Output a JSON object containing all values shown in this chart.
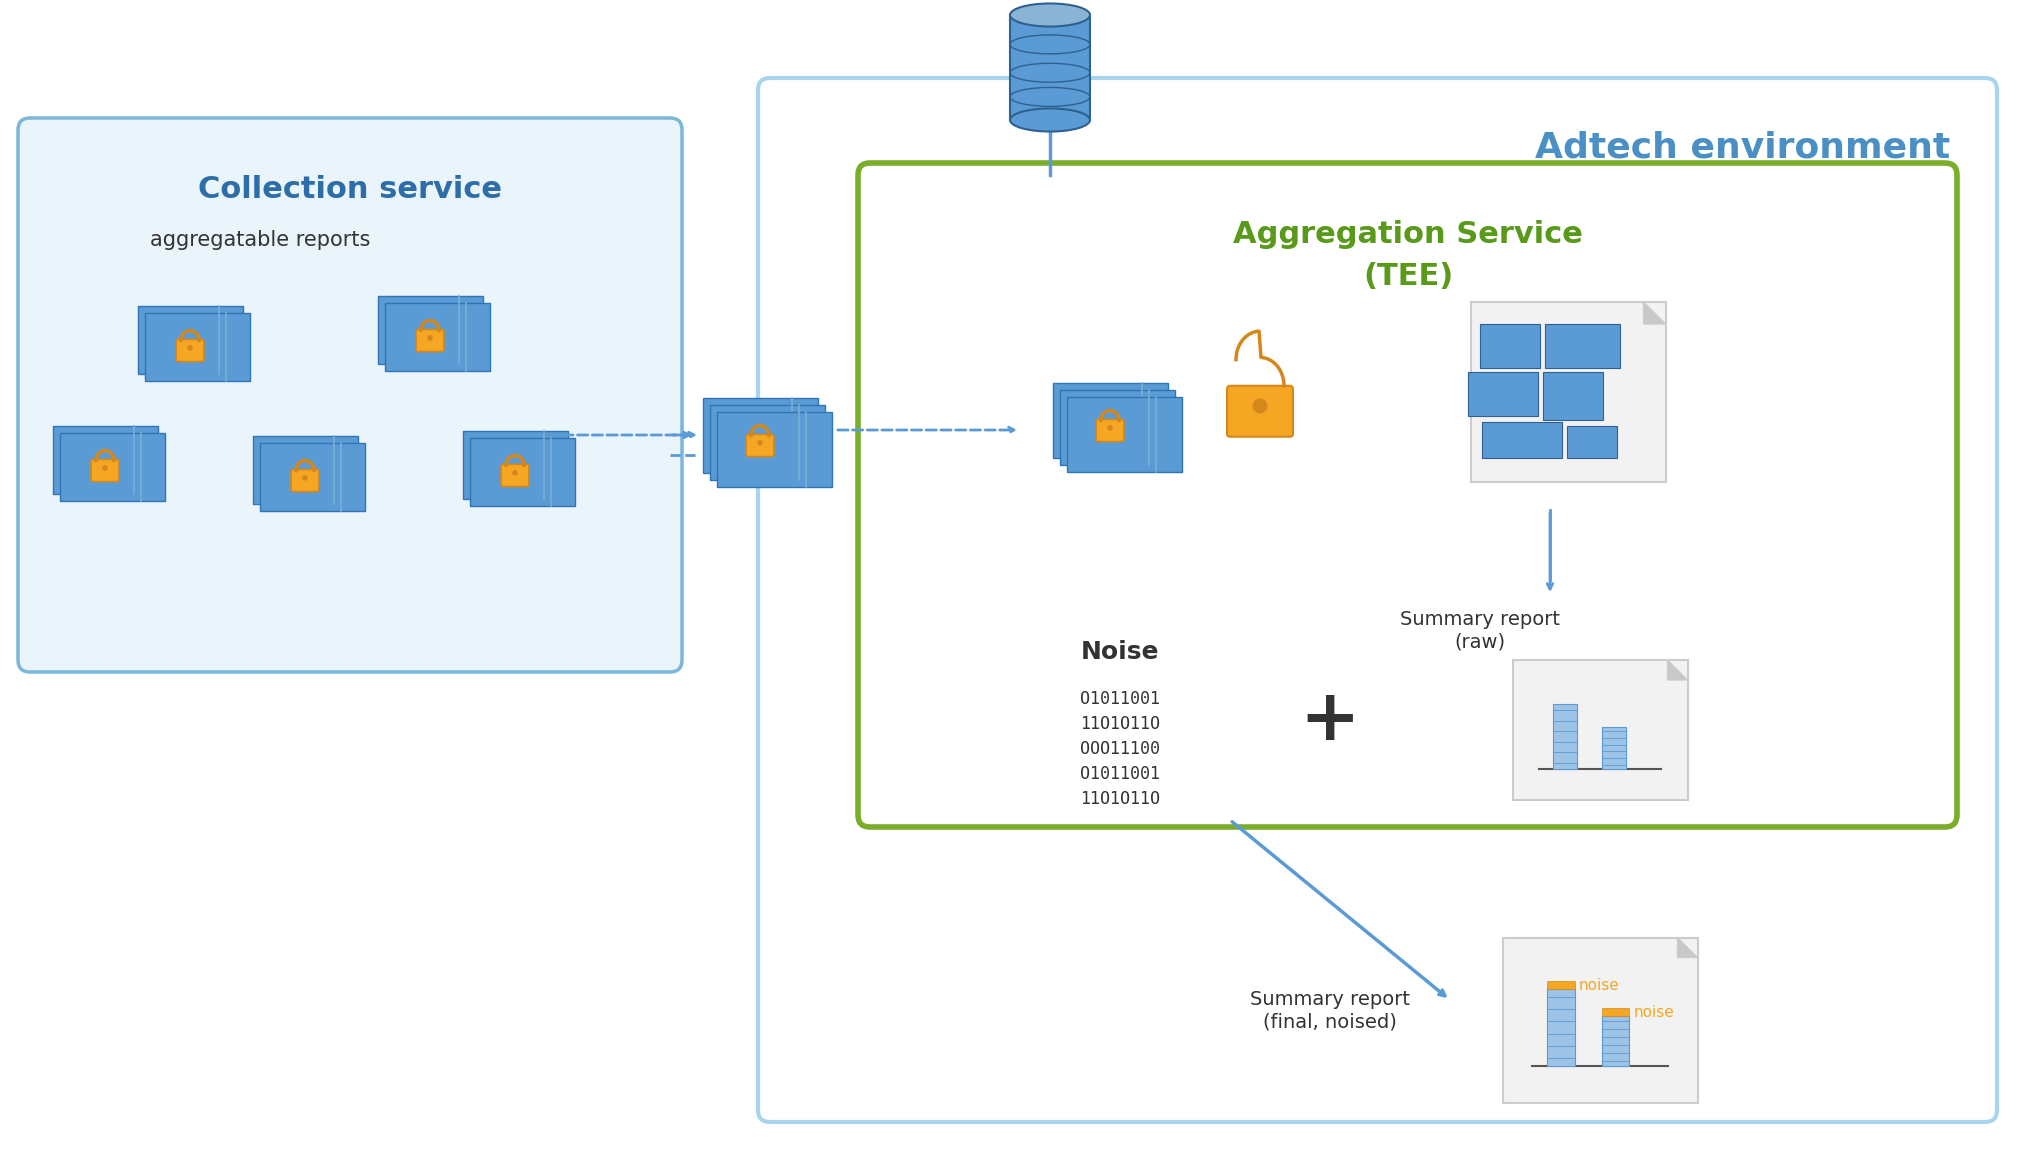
{
  "bg_color": "#ffffff",
  "adtech_border_color": "#a8d4ed",
  "adtech_label": "Adtech environment",
  "adtech_label_color": "#4a90c4",
  "collection_border_color": "#7ab8d9",
  "collection_bg": "#eaf4fb",
  "collection_label": "Collection service",
  "collection_label_color": "#2d6ea8",
  "aggregation_border_color": "#7aad2a",
  "aggregation_bg": "#ffffff",
  "aggregation_label_line1": "Aggregation Service",
  "aggregation_label_line2": "(TEE)",
  "aggregation_label_color": "#5a9a1a",
  "agg_report_text": "aggregatable reports",
  "noise_text": "Noise",
  "noise_binary": "O1011001\n11O1O11O\nOOO11100\nO1011001\n11O1O11O",
  "plus_symbol": "+",
  "summary_raw_label": "Summary report\n(raw)",
  "summary_final_label": "Summary report\n(final, noised)",
  "noise_label": "noise",
  "blue_doc": "#5b9bd5",
  "blue_doc_dark": "#2e75b6",
  "blue_doc_light": "#9dc3e6",
  "lock_orange": "#f5a623",
  "lock_orange_dark": "#d4881c",
  "arrow_color": "#5b9bd5",
  "db_color": "#5b9bd5",
  "db_top_color": "#8ab4d4",
  "text_color": "#333333",
  "doc_bg": "#f2f2f2",
  "doc_border": "#cccccc"
}
